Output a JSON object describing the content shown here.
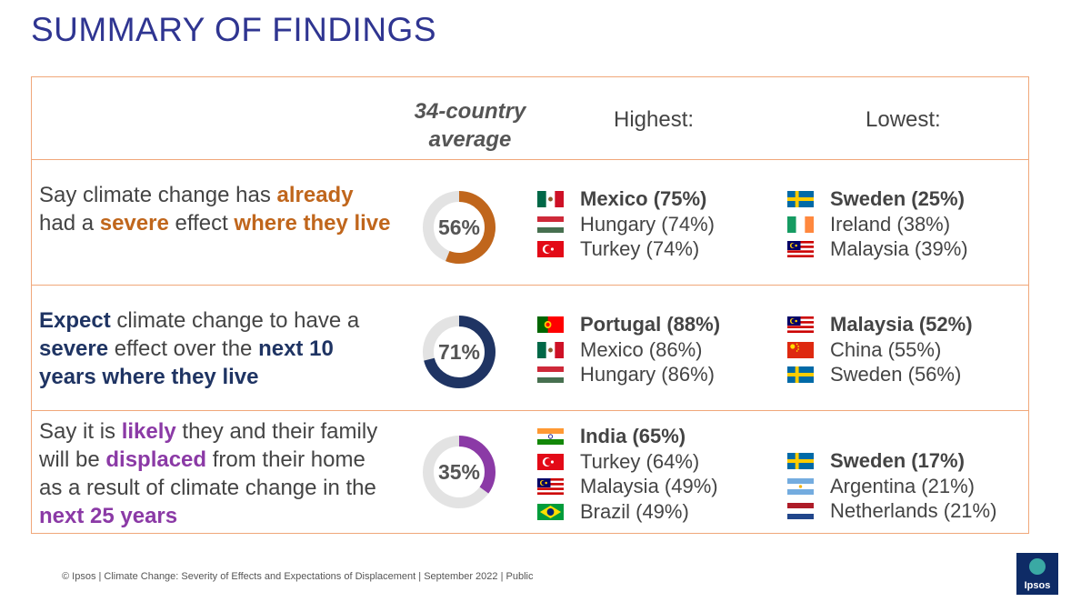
{
  "title": "SUMMARY OF FINDINGS",
  "header": {
    "avg_line1": "34-country",
    "avg_line2": "average",
    "highest": "Highest:",
    "lowest": "Lowest:"
  },
  "colors": {
    "orange": "#c0661c",
    "navy": "#1f3463",
    "purple": "#8b3aa6",
    "title": "#2f3591",
    "border": "#f0a77a"
  },
  "rows": [
    {
      "text_parts": [
        {
          "t": "Say climate change has ",
          "b": false,
          "c": "#444444"
        },
        {
          "t": "already",
          "b": true,
          "c": "#c0661c"
        },
        {
          "t": " had a ",
          "b": false,
          "c": "#444444"
        },
        {
          "t": "severe",
          "b": true,
          "c": "#c0661c"
        },
        {
          "t": " effect ",
          "b": false,
          "c": "#444444"
        },
        {
          "t": "where they live",
          "b": true,
          "c": "#c0661c"
        }
      ],
      "avg_label": "56%",
      "avg_value": 56,
      "color": "#c0661c",
      "highest": [
        {
          "label": "Mexico (75%)",
          "flag": "mexico-flag-icon",
          "bold": true
        },
        {
          "label": "Hungary (74%)",
          "flag": "hungary-flag-icon",
          "bold": false
        },
        {
          "label": "Turkey (74%)",
          "flag": "turkey-flag-icon",
          "bold": false
        }
      ],
      "lowest": [
        {
          "label": "Sweden (25%)",
          "flag": "sweden-flag-icon",
          "bold": true
        },
        {
          "label": "Ireland (38%)",
          "flag": "ireland-flag-icon",
          "bold": false
        },
        {
          "label": "Malaysia (39%)",
          "flag": "malaysia-flag-icon",
          "bold": false
        }
      ]
    },
    {
      "text_parts": [
        {
          "t": "Expect",
          "b": true,
          "c": "#1f3463"
        },
        {
          "t": " climate change to have a ",
          "b": false,
          "c": "#444444"
        },
        {
          "t": "severe",
          "b": true,
          "c": "#1f3463"
        },
        {
          "t": " effect over the ",
          "b": false,
          "c": "#444444"
        },
        {
          "t": "next 10 years where they live",
          "b": true,
          "c": "#1f3463"
        }
      ],
      "avg_label": "71%",
      "avg_value": 71,
      "color": "#1f3463",
      "highest": [
        {
          "label": "Portugal (88%)",
          "flag": "portugal-flag-icon",
          "bold": true
        },
        {
          "label": "Mexico (86%)",
          "flag": "mexico-flag-icon",
          "bold": false
        },
        {
          "label": "Hungary (86%)",
          "flag": "hungary-flag-icon",
          "bold": false
        }
      ],
      "lowest": [
        {
          "label": "Malaysia (52%)",
          "flag": "malaysia-flag-icon",
          "bold": true
        },
        {
          "label": "China (55%)",
          "flag": "china-flag-icon",
          "bold": false
        },
        {
          "label": "Sweden (56%)",
          "flag": "sweden-flag-icon",
          "bold": false
        }
      ]
    },
    {
      "text_parts": [
        {
          "t": "Say it is ",
          "b": false,
          "c": "#444444"
        },
        {
          "t": "likely",
          "b": true,
          "c": "#8b3aa6"
        },
        {
          "t": " they and their family will be ",
          "b": false,
          "c": "#444444"
        },
        {
          "t": "displaced",
          "b": true,
          "c": "#8b3aa6"
        },
        {
          "t": " from their home as a result of climate change in the ",
          "b": false,
          "c": "#444444"
        },
        {
          "t": "next 25 years",
          "b": true,
          "c": "#8b3aa6"
        }
      ],
      "avg_label": "35%",
      "avg_value": 35,
      "color": "#8b3aa6",
      "highest": [
        {
          "label": "India (65%)",
          "flag": "india-flag-icon",
          "bold": true
        },
        {
          "label": "Turkey (64%)",
          "flag": "turkey-flag-icon",
          "bold": false
        },
        {
          "label": "Malaysia (49%)",
          "flag": "malaysia-flag-icon",
          "bold": false
        },
        {
          "label": "Brazil (49%)",
          "flag": "brazil-flag-icon",
          "bold": false
        }
      ],
      "lowest": [
        {
          "label": "Sweden (17%)",
          "flag": "sweden-flag-icon",
          "bold": true
        },
        {
          "label": "Argentina (21%)",
          "flag": "argentina-flag-icon",
          "bold": false
        },
        {
          "label": "Netherlands (21%)",
          "flag": "netherlands-flag-icon",
          "bold": false
        }
      ]
    }
  ],
  "footer": "© Ipsos | Climate Change: Severity of Effects and Expectations of Displacement | September 2022 | Public",
  "logo_text": "Ipsos"
}
